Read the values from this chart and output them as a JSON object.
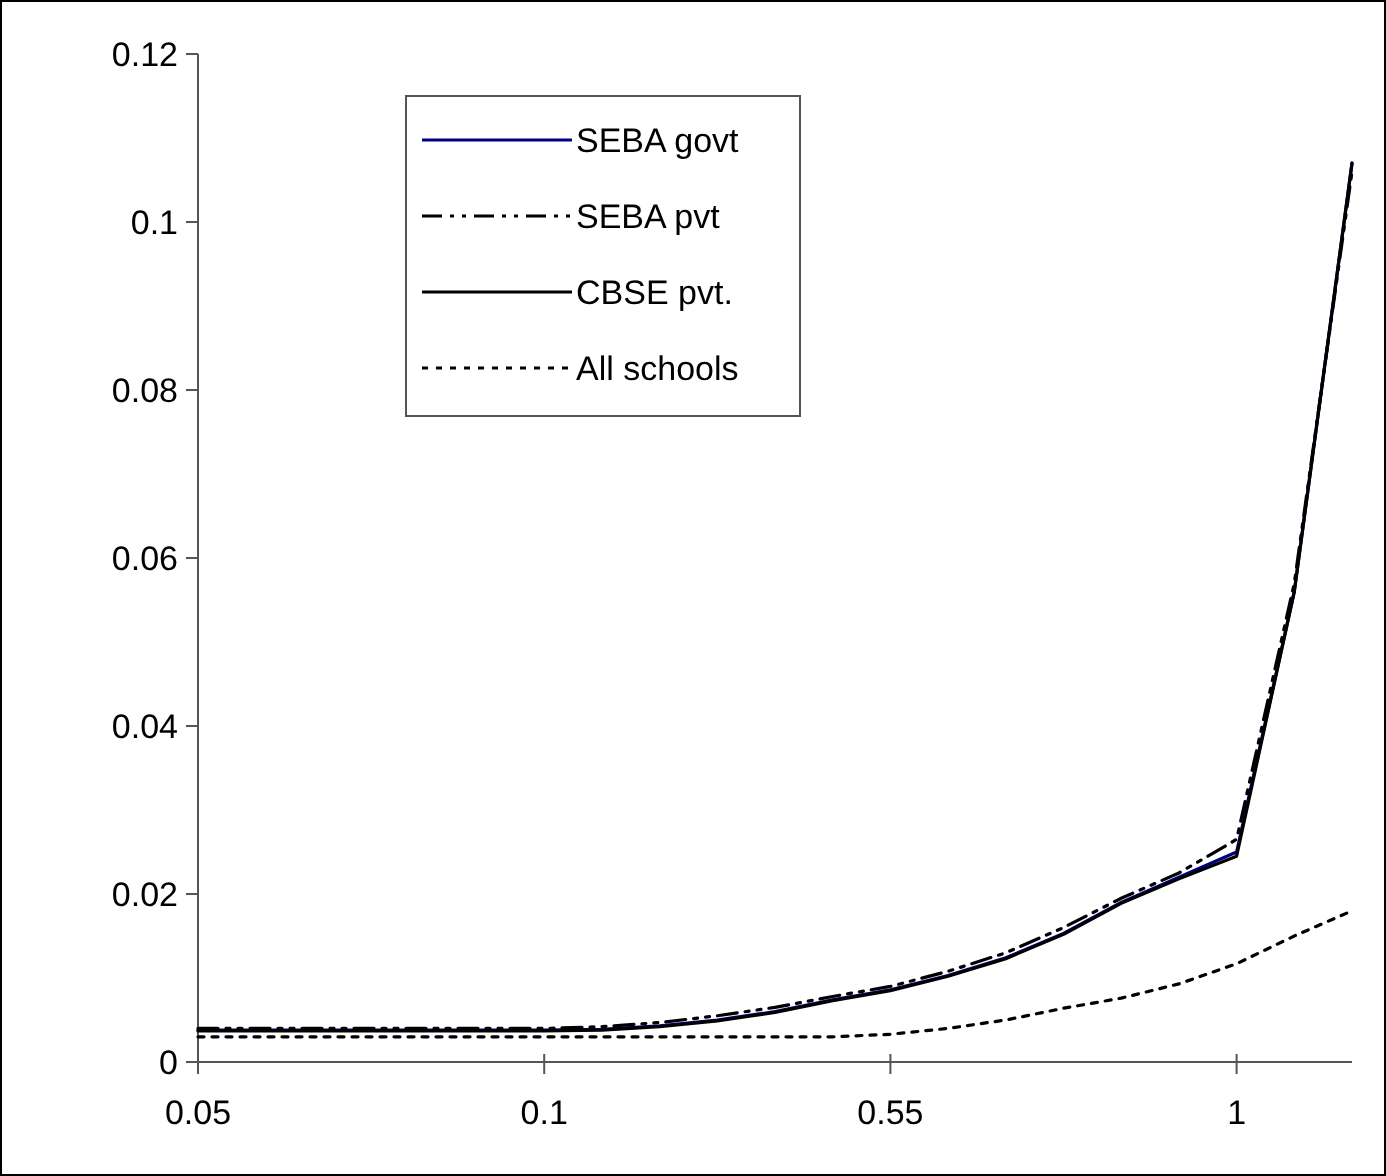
{
  "chart_data": {
    "type": "line",
    "categories": [
      "0.05",
      null,
      null,
      null,
      null,
      null,
      "0.1",
      null,
      null,
      null,
      null,
      null,
      "0.55",
      null,
      null,
      null,
      null,
      null,
      "1",
      null,
      null
    ],
    "series": [
      {
        "name": "SEBA govt",
        "color": "#000080",
        "line_style": "solid",
        "values": [
          0.0038,
          0.0038,
          0.0038,
          0.0038,
          0.0038,
          0.0038,
          0.0038,
          0.0039,
          0.0043,
          0.005,
          0.006,
          0.0074,
          0.0086,
          0.0103,
          0.0124,
          0.0153,
          0.019,
          0.022,
          0.025,
          0.056,
          0.107
        ]
      },
      {
        "name": "SEBA pvt",
        "color": "#000000",
        "line_style": "dashed",
        "values": [
          0.004,
          0.004,
          0.004,
          0.004,
          0.004,
          0.004,
          0.004,
          0.0042,
          0.0047,
          0.0055,
          0.0065,
          0.0078,
          0.009,
          0.0108,
          0.013,
          0.016,
          0.0195,
          0.0225,
          0.0265,
          0.057,
          0.106
        ]
      },
      {
        "name": "CBSE pvt.",
        "color": "#000000",
        "line_style": "solid",
        "values": [
          0.0037,
          0.0037,
          0.0037,
          0.0037,
          0.0037,
          0.0037,
          0.0037,
          0.0038,
          0.0042,
          0.0049,
          0.0059,
          0.0073,
          0.0085,
          0.0102,
          0.0123,
          0.0152,
          0.0189,
          0.0218,
          0.0245,
          0.056,
          0.107
        ]
      },
      {
        "name": "All schools",
        "color": "#000000",
        "line_style": "dotted",
        "values": [
          0.003,
          0.003,
          0.003,
          0.003,
          0.003,
          0.003,
          0.003,
          0.003,
          0.003,
          0.003,
          0.003,
          0.003,
          0.0033,
          0.004,
          0.005,
          0.0064,
          0.0076,
          0.0093,
          0.0117,
          0.015,
          0.018
        ]
      }
    ],
    "ylim": [
      0,
      0.12
    ],
    "yticks": [
      0,
      0.02,
      0.04,
      0.06,
      0.08,
      0.1,
      0.12
    ],
    "legend": "top left",
    "grid": false,
    "marker": "none"
  }
}
